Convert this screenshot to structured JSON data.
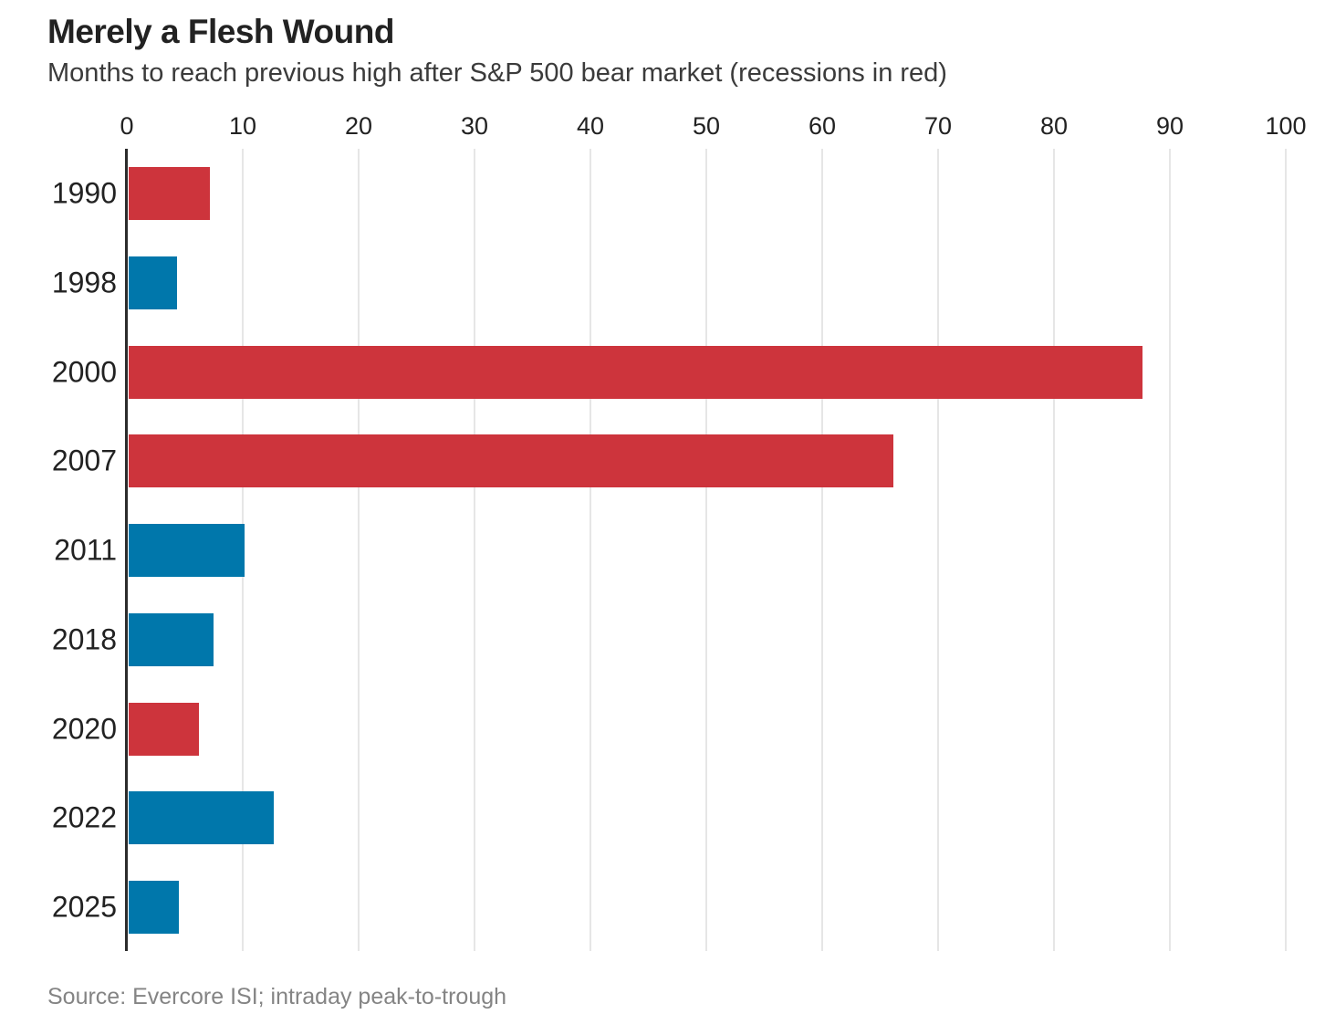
{
  "chart_data": {
    "type": "bar",
    "orientation": "horizontal",
    "title": "Merely a Flesh Wound",
    "subtitle": "Months to reach previous high after S&P 500 bear market (recessions in red)",
    "categories": [
      "1990",
      "1998",
      "2000",
      "2007",
      "2011",
      "2018",
      "2020",
      "2022",
      "2025"
    ],
    "series": [
      {
        "name": "Months to reach previous high",
        "values": [
          7,
          4.2,
          87.5,
          66,
          10,
          7.3,
          6.1,
          12.5,
          4.3
        ]
      }
    ],
    "recession": [
      true,
      false,
      true,
      true,
      false,
      false,
      true,
      false,
      false
    ],
    "xlabel": "",
    "ylabel": "",
    "xlim": [
      0,
      100
    ],
    "xticks": [
      0,
      10,
      20,
      30,
      40,
      50,
      60,
      70,
      80,
      90,
      100
    ],
    "grid": "vertical-gridlines-on",
    "legend": "none",
    "colors": {
      "recession_red": "#cd343c",
      "non_recession_blue": "#0077ab",
      "axis_line": "#2b2b2b",
      "gridline": "#e6e6e6",
      "title_text": "#222222",
      "source_text": "#848484"
    },
    "source": "Source: Evercore ISI; intraday peak-to-trough"
  }
}
